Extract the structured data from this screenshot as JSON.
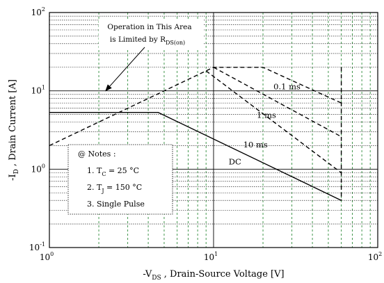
{
  "chart_data": {
    "type": "line",
    "x_scale": "log",
    "y_scale": "log",
    "xlim": [
      1,
      100
    ],
    "ylim": [
      0.1,
      100
    ],
    "grid": true,
    "x_ticks": [
      {
        "base": "10",
        "exp": "0"
      },
      {
        "base": "10",
        "exp": "1"
      },
      {
        "base": "10",
        "exp": "2"
      }
    ],
    "y_ticks": [
      {
        "base": "10",
        "exp": "-1"
      },
      {
        "base": "10",
        "exp": "0"
      },
      {
        "base": "10",
        "exp": "1"
      },
      {
        "base": "10",
        "exp": "2"
      }
    ],
    "xlabel": {
      "pre": "-V",
      "sub": "DS",
      "post": " , Drain-Source Voltage  [V]"
    },
    "ylabel": {
      "pre": "-I",
      "sub": "D",
      "post": " , Drain Current  [A]"
    },
    "series": [
      {
        "name": "0.1 ms",
        "style": "dashed",
        "points": [
          [
            1,
            2.0
          ],
          [
            10,
            20
          ],
          [
            20,
            20
          ],
          [
            60,
            7.0
          ]
        ]
      },
      {
        "name": "1 ms",
        "style": "dashed",
        "points": [
          [
            10,
            20
          ],
          [
            60,
            2.6
          ]
        ]
      },
      {
        "name": "10 ms",
        "style": "dashed",
        "points": [
          [
            9,
            18
          ],
          [
            60,
            0.9
          ]
        ]
      },
      {
        "name": "DC",
        "style": "solid",
        "points": [
          [
            1,
            5.3
          ],
          [
            4.6,
            5.3
          ],
          [
            60,
            0.4
          ]
        ]
      },
      {
        "name": "",
        "style": "dashed-boundary",
        "points": [
          [
            60,
            20
          ],
          [
            60,
            0.4
          ]
        ]
      }
    ],
    "series_labels": [
      {
        "text": "0.1 ms",
        "at": [
          28,
          10.5
        ]
      },
      {
        "text": "1 ms",
        "at": [
          21,
          4.5
        ]
      },
      {
        "text": "10 ms",
        "at": [
          18,
          1.9
        ]
      },
      {
        "text": "DC",
        "at": [
          13.5,
          1.15
        ]
      }
    ],
    "annotation": {
      "line1": "Operation in This Area",
      "line2_pre": "is Limited by R",
      "line2_sub": "DS(on)",
      "arrow_to": [
        2.2,
        10
      ]
    },
    "notes": {
      "title": "@ Notes :",
      "items": [
        {
          "pre": "1. T",
          "sub": "C",
          "post": " = 25 °C"
        },
        {
          "pre": "2. T",
          "sub": "J",
          "post": " = 150 °C"
        },
        {
          "pre": "3. Single Pulse",
          "sub": "",
          "post": ""
        }
      ]
    }
  }
}
